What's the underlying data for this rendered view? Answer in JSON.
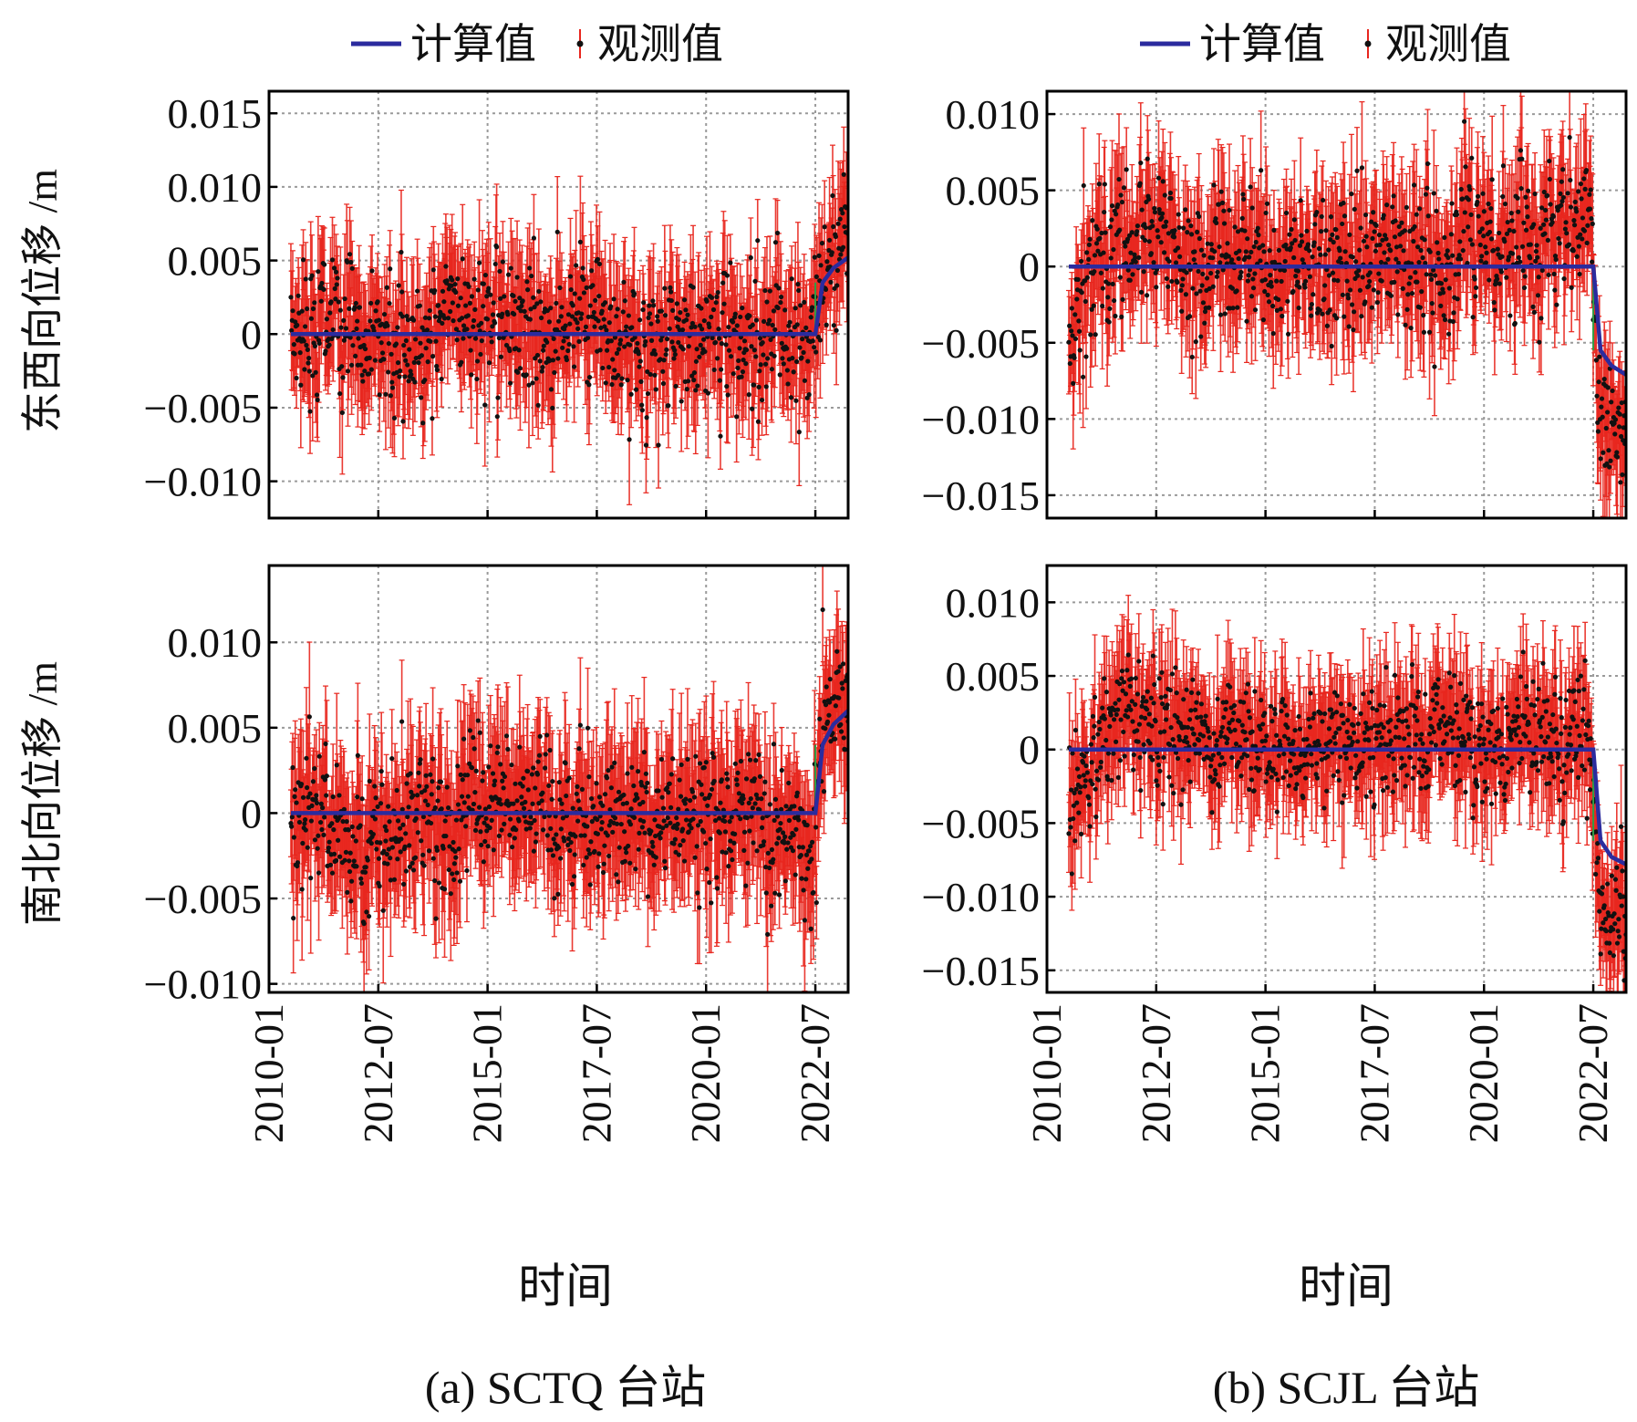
{
  "legend": {
    "calc_label": "计算值",
    "obs_label": "观测值"
  },
  "colors": {
    "calc": "#2b2b9e",
    "obs_point": "#111111",
    "obs_error": "#e8261e",
    "step": "#2e9e46",
    "grid": "#9a9a9a",
    "axes": "#000000"
  },
  "xaxis": {
    "label": "时间",
    "ticks": [
      "2010-01",
      "2012-07",
      "2015-01",
      "2017-07",
      "2020-01",
      "2022-07"
    ],
    "range": [
      "2010-01",
      "2023-04"
    ]
  },
  "ylabels": {
    "top": "东西向位移 /m",
    "bottom": "南北向位移 /m"
  },
  "subcaptions": {
    "a": "(a) SCTQ 台站",
    "b": "(b) SCJL 台站"
  },
  "chart_data": [
    {
      "id": "SCTQ-EW",
      "type": "scatter",
      "station": "SCTQ",
      "ylabel": "东西向位移 /m",
      "ylim": [
        -0.0125,
        0.0165
      ],
      "yticks": [
        0.015,
        0.01,
        0.005,
        0,
        -0.005,
        -0.01
      ],
      "ytick_labels": [
        "0.015",
        "0.010",
        "0.005",
        "0",
        "−0.005",
        "−0.010"
      ],
      "obs_start": "2010-07",
      "obs_end": "2023-04",
      "event": "2022-07",
      "calc_line": {
        "x": [
          "2010-07",
          "2022-07",
          "2022-09",
          "2022-12",
          "2023-04"
        ],
        "y": [
          0,
          0,
          0.0035,
          0.0045,
          0.0052
        ]
      },
      "observed_mean": {
        "x": [
          "2010-07",
          "2013-01",
          "2016-01",
          "2018-07",
          "2021-01",
          "2022-06",
          "2022-09",
          "2023-04"
        ],
        "y": [
          0.0005,
          -0.0005,
          0.0005,
          -0.0008,
          0.0,
          -0.001,
          0.005,
          0.007
        ]
      },
      "observed_spread": 0.004,
      "error_bar_halfwidth": 0.003
    },
    {
      "id": "SCTQ-NS",
      "type": "scatter",
      "station": "SCTQ",
      "ylabel": "南北向位移 /m",
      "ylim": [
        -0.0105,
        0.0145
      ],
      "yticks": [
        0.01,
        0.005,
        0,
        -0.005,
        -0.01
      ],
      "ytick_labels": [
        "0.010",
        "0.005",
        "0",
        "−0.005",
        "−0.010"
      ],
      "obs_start": "2010-07",
      "obs_end": "2023-04",
      "event": "2022-07",
      "calc_line": {
        "x": [
          "2010-07",
          "2022-07",
          "2022-09",
          "2022-12",
          "2023-04"
        ],
        "y": [
          0,
          0,
          0.004,
          0.0052,
          0.006
        ]
      },
      "observed_mean": {
        "x": [
          "2010-07",
          "2013-01",
          "2016-01",
          "2018-07",
          "2021-01",
          "2022-06",
          "2022-09",
          "2023-04"
        ],
        "y": [
          0.0,
          -0.001,
          0.0005,
          -0.0005,
          0.0,
          -0.003,
          0.006,
          0.008
        ]
      },
      "observed_spread": 0.0035,
      "error_bar_halfwidth": 0.003
    },
    {
      "id": "SCJL-EW",
      "type": "scatter",
      "station": "SCJL",
      "ylabel": "东西向位移 /m",
      "ylim": [
        -0.0165,
        0.0115
      ],
      "yticks": [
        0.01,
        0.005,
        0,
        -0.005,
        -0.01,
        -0.015
      ],
      "ytick_labels": [
        "0.010",
        "0.005",
        "0",
        "−0.005",
        "−0.010",
        "−0.015"
      ],
      "obs_start": "2010-07",
      "obs_end": "2023-04",
      "event": "2022-07",
      "calc_line": {
        "x": [
          "2010-07",
          "2022-07",
          "2022-09",
          "2022-12",
          "2023-04"
        ],
        "y": [
          0,
          0,
          -0.0055,
          -0.0065,
          -0.0071
        ]
      },
      "observed_mean": {
        "x": [
          "2010-07",
          "2011-07",
          "2013-01",
          "2016-01",
          "2018-07",
          "2021-01",
          "2022-06",
          "2022-09",
          "2023-04"
        ],
        "y": [
          -0.004,
          0.002,
          0.001,
          0.0,
          0.0005,
          0.002,
          0.003,
          -0.009,
          -0.01
        ]
      },
      "observed_spread": 0.004,
      "error_bar_halfwidth": 0.003
    },
    {
      "id": "SCJL-NS",
      "type": "scatter",
      "station": "SCJL",
      "ylabel": "南北向位移 /m",
      "ylim": [
        -0.0165,
        0.0125
      ],
      "yticks": [
        0.01,
        0.005,
        0,
        -0.005,
        -0.01,
        -0.015
      ],
      "ytick_labels": [
        "0.010",
        "0.005",
        "0",
        "−0.005",
        "−0.010",
        "−0.015"
      ],
      "obs_start": "2010-07",
      "obs_end": "2023-04",
      "event": "2022-07",
      "calc_line": {
        "x": [
          "2010-07",
          "2022-07",
          "2022-09",
          "2022-12",
          "2023-04"
        ],
        "y": [
          0,
          0,
          -0.0062,
          -0.0073,
          -0.0078
        ]
      },
      "observed_mean": {
        "x": [
          "2010-07",
          "2011-07",
          "2013-01",
          "2016-01",
          "2018-07",
          "2021-01",
          "2022-06",
          "2022-09",
          "2023-04"
        ],
        "y": [
          -0.004,
          0.001,
          0.0015,
          0.0,
          0.0,
          0.001,
          0.001,
          -0.01,
          -0.011
        ]
      },
      "observed_spread": 0.0035,
      "error_bar_halfwidth": 0.003
    }
  ]
}
